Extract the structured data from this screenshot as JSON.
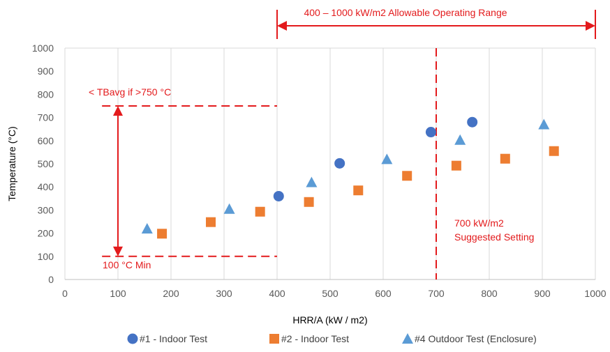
{
  "chart_data": {
    "type": "scatter",
    "title": "",
    "xlabel": "HRR/A (kW / m2)",
    "ylabel": "Temperature (°C)",
    "xlim": [
      0,
      1000
    ],
    "ylim": [
      0,
      1000
    ],
    "x_ticks": [
      0,
      100,
      200,
      300,
      400,
      500,
      600,
      700,
      800,
      900,
      1000
    ],
    "y_ticks": [
      0,
      100,
      200,
      300,
      400,
      500,
      600,
      700,
      800,
      900,
      1000
    ],
    "grid": "vertical",
    "legend_position": "bottom",
    "series": [
      {
        "name": "#1 - Indoor Test",
        "marker": "circle",
        "color": "#4472c4",
        "points": [
          [
            403,
            360
          ],
          [
            518,
            502
          ],
          [
            690,
            637
          ],
          [
            768,
            680
          ]
        ]
      },
      {
        "name": "#2 - Indoor Test",
        "marker": "square",
        "color": "#ed7d31",
        "points": [
          [
            183,
            198
          ],
          [
            275,
            248
          ],
          [
            368,
            293
          ],
          [
            460,
            335
          ],
          [
            553,
            385
          ],
          [
            645,
            448
          ],
          [
            738,
            492
          ],
          [
            830,
            522
          ],
          [
            922,
            555
          ]
        ]
      },
      {
        "name": "#4 Outdoor Test (Enclosure)",
        "marker": "triangle",
        "color": "#5b9bd5",
        "points": [
          [
            155,
            220
          ],
          [
            310,
            305
          ],
          [
            465,
            420
          ],
          [
            607,
            520
          ],
          [
            745,
            603
          ],
          [
            903,
            670
          ]
        ]
      }
    ],
    "annotations": {
      "color": "#e31a1c",
      "range_label": "400 – 1000 kW/m2 Allowable Operating Range",
      "range_x": [
        400,
        1000
      ],
      "upper_label": "< TBavg if >750 °C",
      "upper_line": {
        "y": 750,
        "x_from": 70,
        "x_to": 400
      },
      "lower_label": "100 °C Min",
      "lower_line": {
        "y": 100,
        "x_from": 70,
        "x_to": 400
      },
      "double_arrow": {
        "x": 100,
        "y_from": 100,
        "y_to": 750
      },
      "vertical_line": {
        "x": 700
      },
      "setting_label_1": "700 kW/m2",
      "setting_label_2": "Suggested Setting"
    }
  }
}
